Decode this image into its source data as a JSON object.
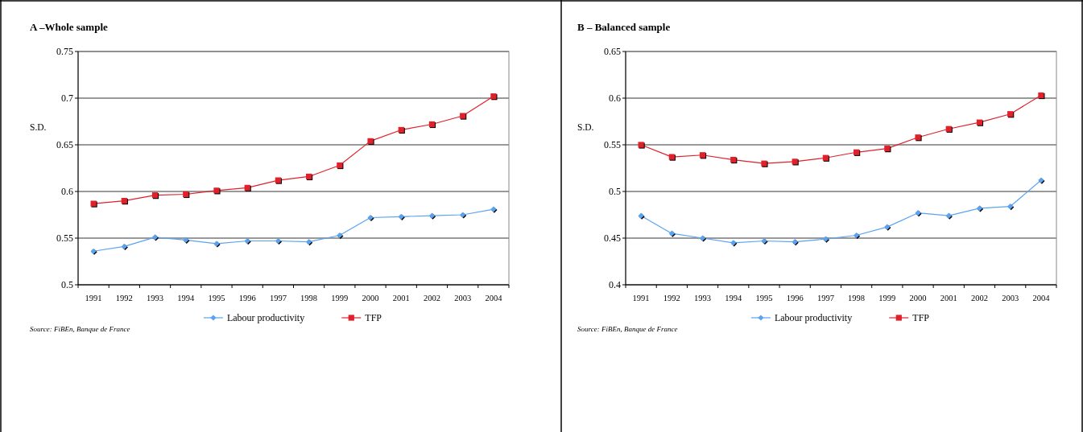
{
  "chart_data": [
    {
      "type": "line",
      "title": "A –Whole sample",
      "ylabel": "S.D.",
      "categories": [
        "1991",
        "1992",
        "1993",
        "1994",
        "1995",
        "1996",
        "1997",
        "1998",
        "1999",
        "2000",
        "2001",
        "2002",
        "2003",
        "2004"
      ],
      "series": [
        {
          "name": "Labour productivity",
          "color": "#5ba3f0",
          "marker": "diamond",
          "values": [
            0.536,
            0.541,
            0.551,
            0.548,
            0.544,
            0.547,
            0.547,
            0.546,
            0.553,
            0.572,
            0.573,
            0.574,
            0.575,
            0.581
          ]
        },
        {
          "name": "TFP",
          "color": "#e0202a",
          "marker": "square",
          "values": [
            0.587,
            0.59,
            0.596,
            0.597,
            0.601,
            0.604,
            0.612,
            0.616,
            0.628,
            0.654,
            0.666,
            0.672,
            0.681,
            0.702
          ]
        }
      ],
      "ylim": [
        0.5,
        0.75
      ],
      "yticks": [
        0.5,
        0.55,
        0.6,
        0.65,
        0.7,
        0.75
      ],
      "grid": "y",
      "legend": "bottom",
      "annotations": [
        "Source: FiBEn, Banque de France"
      ]
    },
    {
      "type": "line",
      "title": "B – Balanced sample",
      "ylabel": "S.D.",
      "categories": [
        "1991",
        "1992",
        "1993",
        "1994",
        "1995",
        "1996",
        "1997",
        "1998",
        "1999",
        "2000",
        "2001",
        "2002",
        "2003",
        "2004"
      ],
      "series": [
        {
          "name": "Labour productivity",
          "color": "#5ba3f0",
          "marker": "diamond",
          "values": [
            0.474,
            0.455,
            0.45,
            0.445,
            0.447,
            0.446,
            0.449,
            0.453,
            0.462,
            0.477,
            0.474,
            0.482,
            0.484,
            0.512
          ]
        },
        {
          "name": "TFP",
          "color": "#e0202a",
          "marker": "square",
          "values": [
            0.55,
            0.537,
            0.539,
            0.534,
            0.53,
            0.532,
            0.536,
            0.542,
            0.546,
            0.558,
            0.567,
            0.574,
            0.583,
            0.603
          ]
        }
      ],
      "ylim": [
        0.4,
        0.65
      ],
      "yticks": [
        0.4,
        0.45,
        0.5,
        0.55,
        0.6,
        0.65
      ],
      "grid": "y",
      "legend": "bottom",
      "annotations": [
        "Source: FiBEn, Banque de France"
      ]
    }
  ]
}
